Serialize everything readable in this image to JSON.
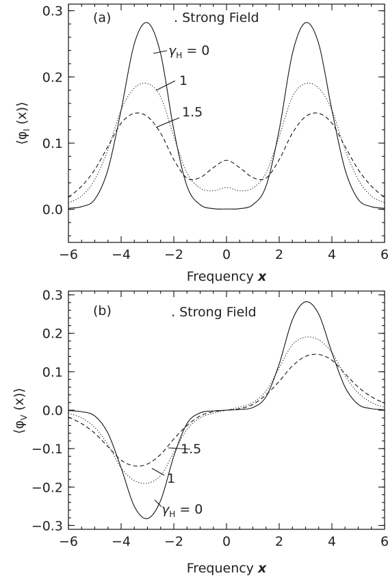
{
  "chart_data": [
    {
      "type": "line",
      "panel_label": "(a)",
      "subtitle": ". Strong Field",
      "xlabel_text": "Frequency ",
      "xlabel_var": "x",
      "ylabel_text": "⟨φ",
      "ylabel_sub": "I",
      "ylabel_tail": " (x)⟩",
      "xlim": [
        -6,
        6
      ],
      "ylim": [
        -0.05,
        0.31
      ],
      "xticks": [
        -6,
        -4,
        -2,
        0,
        2,
        4,
        6
      ],
      "xtick_labels": [
        "−6",
        "−4",
        "−2",
        "0",
        "2",
        "4",
        "6"
      ],
      "yticks": [
        0.0,
        0.1,
        0.2,
        0.3
      ],
      "ytick_labels": [
        "0.0",
        "0.1",
        "0.2",
        "0.3"
      ],
      "grid": false,
      "series": [
        {
          "style": "solid",
          "x": [
            -6,
            -5.5,
            -5,
            -4.5,
            -4,
            -3.5,
            -3,
            -2.5,
            -2,
            -1.5,
            -1,
            -0.5,
            0,
            0.5,
            1,
            1.5,
            2,
            2.5,
            3,
            3.5,
            4,
            4.5,
            5,
            5.5,
            6
          ],
          "values": [
            0.0015,
            0.004,
            0.015,
            0.06,
            0.15,
            0.25,
            0.282,
            0.235,
            0.12,
            0.035,
            0.007,
            0.001,
            0.0005,
            0.001,
            0.007,
            0.035,
            0.12,
            0.235,
            0.282,
            0.25,
            0.15,
            0.06,
            0.015,
            0.004,
            0.0015
          ]
        },
        {
          "style": "dotted",
          "x": [
            -6,
            -5.5,
            -5,
            -4.5,
            -4,
            -3.5,
            -3,
            -2.5,
            -2,
            -1.5,
            -1,
            -0.5,
            0,
            0.5,
            1,
            1.5,
            2,
            2.5,
            3,
            3.5,
            4,
            4.5,
            5,
            5.5,
            6
          ],
          "values": [
            0.01,
            0.02,
            0.045,
            0.09,
            0.15,
            0.183,
            0.19,
            0.17,
            0.11,
            0.055,
            0.032,
            0.028,
            0.033,
            0.028,
            0.032,
            0.055,
            0.11,
            0.17,
            0.19,
            0.183,
            0.15,
            0.09,
            0.045,
            0.02,
            0.01
          ]
        },
        {
          "style": "dashed",
          "x": [
            -6,
            -5.5,
            -5,
            -4.5,
            -4,
            -3.5,
            -3,
            -2.5,
            -2,
            -1.5,
            -1,
            -0.5,
            0,
            0.5,
            1,
            1.5,
            2,
            2.5,
            3,
            3.5,
            4,
            4.5,
            5,
            5.5,
            6
          ],
          "values": [
            0.018,
            0.035,
            0.06,
            0.095,
            0.13,
            0.145,
            0.14,
            0.115,
            0.075,
            0.047,
            0.048,
            0.063,
            0.074,
            0.063,
            0.048,
            0.047,
            0.075,
            0.115,
            0.14,
            0.145,
            0.13,
            0.095,
            0.06,
            0.035,
            0.018
          ]
        }
      ],
      "annotations": [
        {
          "label": "γ",
          "sub": "H",
          "tail": " = 0"
        },
        {
          "label": "1"
        },
        {
          "label": "1.5"
        }
      ]
    },
    {
      "type": "line",
      "panel_label": "(b)",
      "subtitle": ". Strong Field",
      "xlabel_text": "Frequency ",
      "xlabel_var": "x",
      "ylabel_text": "⟨φ",
      "ylabel_sub": "V",
      "ylabel_tail": " (x)⟩",
      "xlim": [
        -6,
        6
      ],
      "ylim": [
        -0.31,
        0.31
      ],
      "xticks": [
        -6,
        -4,
        -2,
        0,
        2,
        4,
        6
      ],
      "xtick_labels": [
        "−6",
        "−4",
        "−2",
        "0",
        "2",
        "4",
        "6"
      ],
      "yticks": [
        -0.3,
        -0.2,
        -0.1,
        0.0,
        0.1,
        0.2,
        0.3
      ],
      "ytick_labels": [
        "−0.3",
        "−0.2",
        "−0.1",
        "0.0",
        "0.1",
        "0.2",
        "0.3"
      ],
      "grid": false,
      "series": [
        {
          "style": "solid",
          "x": [
            -6,
            -5.5,
            -5,
            -4.5,
            -4,
            -3.5,
            -3,
            -2.5,
            -2,
            -1.5,
            -1,
            -0.5,
            0,
            0.5,
            1,
            1.5,
            2,
            2.5,
            3,
            3.5,
            4,
            4.5,
            5,
            5.5,
            6
          ],
          "values": [
            -0.001,
            -0.004,
            -0.015,
            -0.06,
            -0.15,
            -0.25,
            -0.282,
            -0.235,
            -0.12,
            -0.035,
            -0.007,
            -0.002,
            0.0,
            0.002,
            0.007,
            0.035,
            0.12,
            0.235,
            0.282,
            0.25,
            0.15,
            0.06,
            0.015,
            0.004,
            0.001
          ]
        },
        {
          "style": "dotted",
          "x": [
            -6,
            -5.5,
            -5,
            -4.5,
            -4,
            -3.5,
            -3,
            -2.5,
            -2,
            -1.5,
            -1,
            -0.5,
            0,
            0.5,
            1,
            1.5,
            2,
            2.5,
            3,
            3.5,
            4,
            4.5,
            5,
            5.5,
            6
          ],
          "values": [
            -0.008,
            -0.02,
            -0.045,
            -0.09,
            -0.15,
            -0.183,
            -0.19,
            -0.17,
            -0.11,
            -0.05,
            -0.02,
            -0.008,
            0.0,
            0.008,
            0.02,
            0.05,
            0.11,
            0.17,
            0.19,
            0.183,
            0.15,
            0.09,
            0.045,
            0.02,
            0.008
          ]
        },
        {
          "style": "dashed",
          "x": [
            -6,
            -5.5,
            -5,
            -4.5,
            -4,
            -3.5,
            -3,
            -2.5,
            -2,
            -1.5,
            -1,
            -0.5,
            0,
            0.5,
            1,
            1.5,
            2,
            2.5,
            3,
            3.5,
            4,
            4.5,
            5,
            5.5,
            6
          ],
          "values": [
            -0.018,
            -0.035,
            -0.06,
            -0.095,
            -0.13,
            -0.145,
            -0.14,
            -0.115,
            -0.075,
            -0.04,
            -0.015,
            -0.004,
            0.0,
            0.004,
            0.015,
            0.04,
            0.075,
            0.115,
            0.14,
            0.145,
            0.13,
            0.095,
            0.06,
            0.035,
            0.018
          ]
        }
      ],
      "annotations": [
        {
          "label": "1.5"
        },
        {
          "label": "1"
        },
        {
          "label": "γ",
          "sub": "H",
          "tail": " = 0"
        }
      ]
    }
  ]
}
